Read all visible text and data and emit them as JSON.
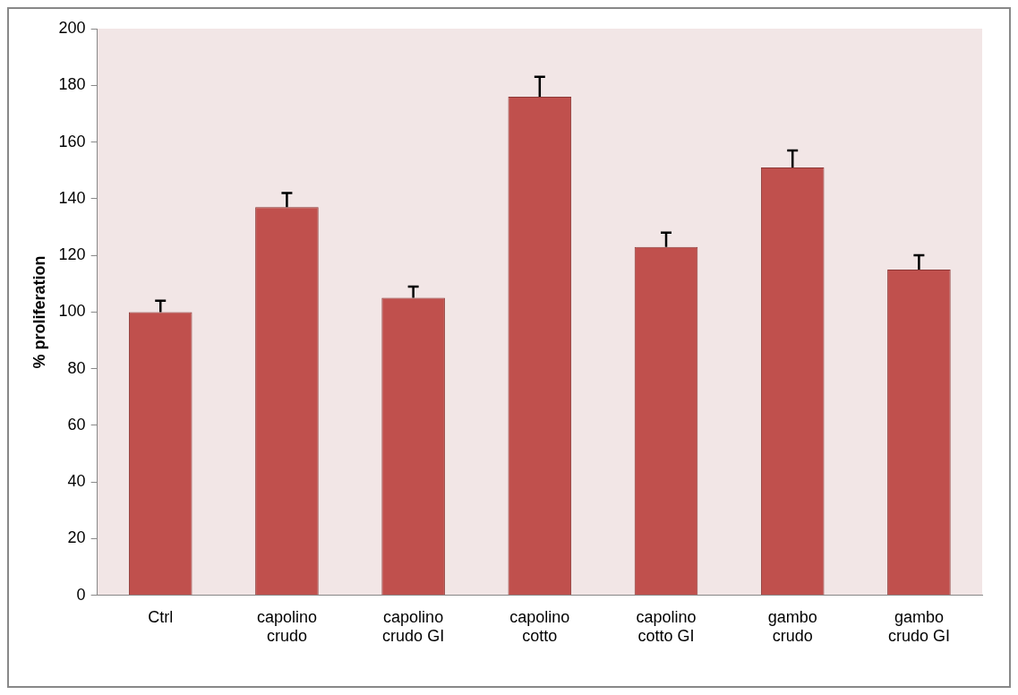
{
  "chart_data": {
    "type": "bar",
    "ylabel": "% proliferation",
    "categories": [
      "Ctrl",
      "capolino crudo",
      "capolino crudo GI",
      "capolino cotto",
      "capolino cotto GI",
      "gambo crudo",
      "gambo crudo GI"
    ],
    "values": [
      100,
      137,
      105,
      176,
      123,
      151,
      115
    ],
    "errors": [
      [
        100,
        104
      ],
      [
        137,
        142
      ],
      [
        105,
        109
      ],
      [
        176,
        183
      ],
      [
        123,
        128
      ],
      [
        151,
        157
      ],
      [
        115,
        120
      ]
    ],
    "color": "#c0504d",
    "ylim": [
      0,
      200
    ],
    "yticks": [
      0,
      20,
      40,
      60,
      80,
      100,
      120,
      140,
      160,
      180,
      200
    ],
    "grid": false,
    "legend": false
  }
}
